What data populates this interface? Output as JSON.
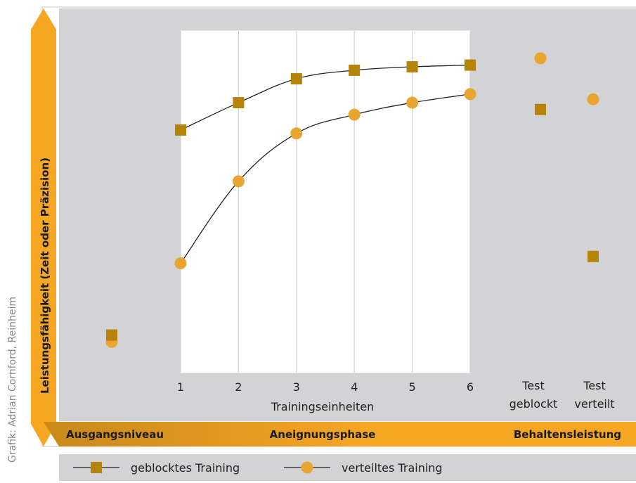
{
  "credit": "Grafik: Adrian Cornford, Reinheim",
  "colors": {
    "panel_gray": "#d3d3d5",
    "orange": "#f5a623",
    "orange_dark": "#c8891a",
    "square": "#b5830a",
    "circle": "#e8a531",
    "line": "#222222"
  },
  "chart_data": {
    "type": "line",
    "ylabel": "Leistungsfähigkeit (Zeit oder Präzision)",
    "xlabel": "Trainingseinheiten",
    "x": [
      1,
      2,
      3,
      4,
      5,
      6
    ],
    "ylim": [
      0,
      100
    ],
    "grid": true,
    "phases": [
      "Ausgangsniveau",
      "Aneignungsphase",
      "Behaltensleistung"
    ],
    "test_labels": [
      [
        "Test",
        "geblockt"
      ],
      [
        "Test",
        "verteilt"
      ]
    ],
    "series": [
      {
        "name": "geblocktes Training",
        "marker": "square",
        "baseline": 11,
        "values": [
          71,
          79,
          86,
          88.5,
          89.5,
          90
        ],
        "test_geblockt": 77,
        "test_verteilt": 34
      },
      {
        "name": "verteiltes Training",
        "marker": "circle",
        "baseline": 9,
        "values": [
          32,
          56,
          70,
          75.5,
          79,
          81.5
        ],
        "test_geblockt": 92,
        "test_verteilt": 80
      }
    ]
  }
}
